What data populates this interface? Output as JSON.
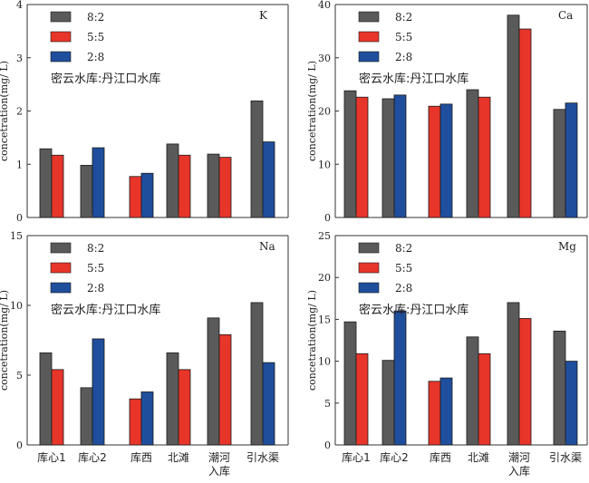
{
  "shared": {
    "ylabel": "concetration(mg/ L)",
    "legend": [
      "8:2",
      "5:5",
      "2:8"
    ],
    "ratio_label": "密云水库:丹江口水库",
    "colors": {
      "8:2": "#5a5a5a",
      "5:5": "#e8352a",
      "2:8": "#1f4e9c"
    }
  },
  "chart_data": [
    {
      "type": "bar",
      "element": "K",
      "categories": [
        "库心1",
        "库心2",
        "库西",
        "北滩",
        "潮河入库",
        "引水渠"
      ],
      "ylim": [
        0,
        4
      ],
      "yticks": [
        0,
        1,
        2,
        3,
        4
      ],
      "legend_position": "top-left",
      "series": [
        {
          "name": "8:2",
          "values": [
            1.29,
            0.98,
            null,
            1.38,
            1.19,
            2.19
          ]
        },
        {
          "name": "5:5",
          "values": [
            1.17,
            null,
            0.77,
            1.17,
            1.13,
            null
          ]
        },
        {
          "name": "2:8",
          "values": [
            null,
            1.31,
            0.83,
            null,
            null,
            1.42
          ]
        }
      ]
    },
    {
      "type": "bar",
      "element": "Ca",
      "categories": [
        "库心1",
        "库心2",
        "库西",
        "北滩",
        "潮河入库",
        "引水渠"
      ],
      "ylim": [
        0,
        40
      ],
      "yticks": [
        0,
        10,
        20,
        30,
        40
      ],
      "legend_position": "top-left",
      "series": [
        {
          "name": "8:2",
          "values": [
            23.8,
            22.3,
            null,
            24.0,
            38.0,
            20.3
          ]
        },
        {
          "name": "5:5",
          "values": [
            22.6,
            null,
            20.9,
            22.6,
            35.4,
            null
          ]
        },
        {
          "name": "2:8",
          "values": [
            null,
            23.0,
            21.3,
            null,
            null,
            21.5
          ]
        }
      ]
    },
    {
      "type": "bar",
      "element": "Na",
      "categories": [
        "库心1",
        "库心2",
        "库西",
        "北滩",
        "潮河入库",
        "引水渠"
      ],
      "ylim": [
        0,
        15
      ],
      "yticks": [
        0,
        5,
        10,
        15
      ],
      "legend_position": "top-left",
      "series": [
        {
          "name": "8:2",
          "values": [
            6.6,
            4.1,
            null,
            6.6,
            9.1,
            10.2
          ]
        },
        {
          "name": "5:5",
          "values": [
            5.4,
            null,
            3.3,
            5.4,
            7.9,
            null
          ]
        },
        {
          "name": "2:8",
          "values": [
            null,
            7.6,
            3.8,
            null,
            null,
            5.9
          ]
        }
      ]
    },
    {
      "type": "bar",
      "element": "Mg",
      "categories": [
        "库心1",
        "库心2",
        "库西",
        "北滩",
        "潮河入库",
        "引水渠"
      ],
      "ylim": [
        0,
        25
      ],
      "yticks": [
        0,
        5,
        10,
        15,
        20,
        25
      ],
      "legend_position": "top-left",
      "series": [
        {
          "name": "8:2",
          "values": [
            14.7,
            10.1,
            null,
            12.9,
            17.0,
            13.6
          ]
        },
        {
          "name": "5:5",
          "values": [
            10.9,
            null,
            7.6,
            10.9,
            15.1,
            null
          ]
        },
        {
          "name": "2:8",
          "values": [
            null,
            16.0,
            8.0,
            null,
            null,
            10.0
          ]
        }
      ]
    }
  ]
}
